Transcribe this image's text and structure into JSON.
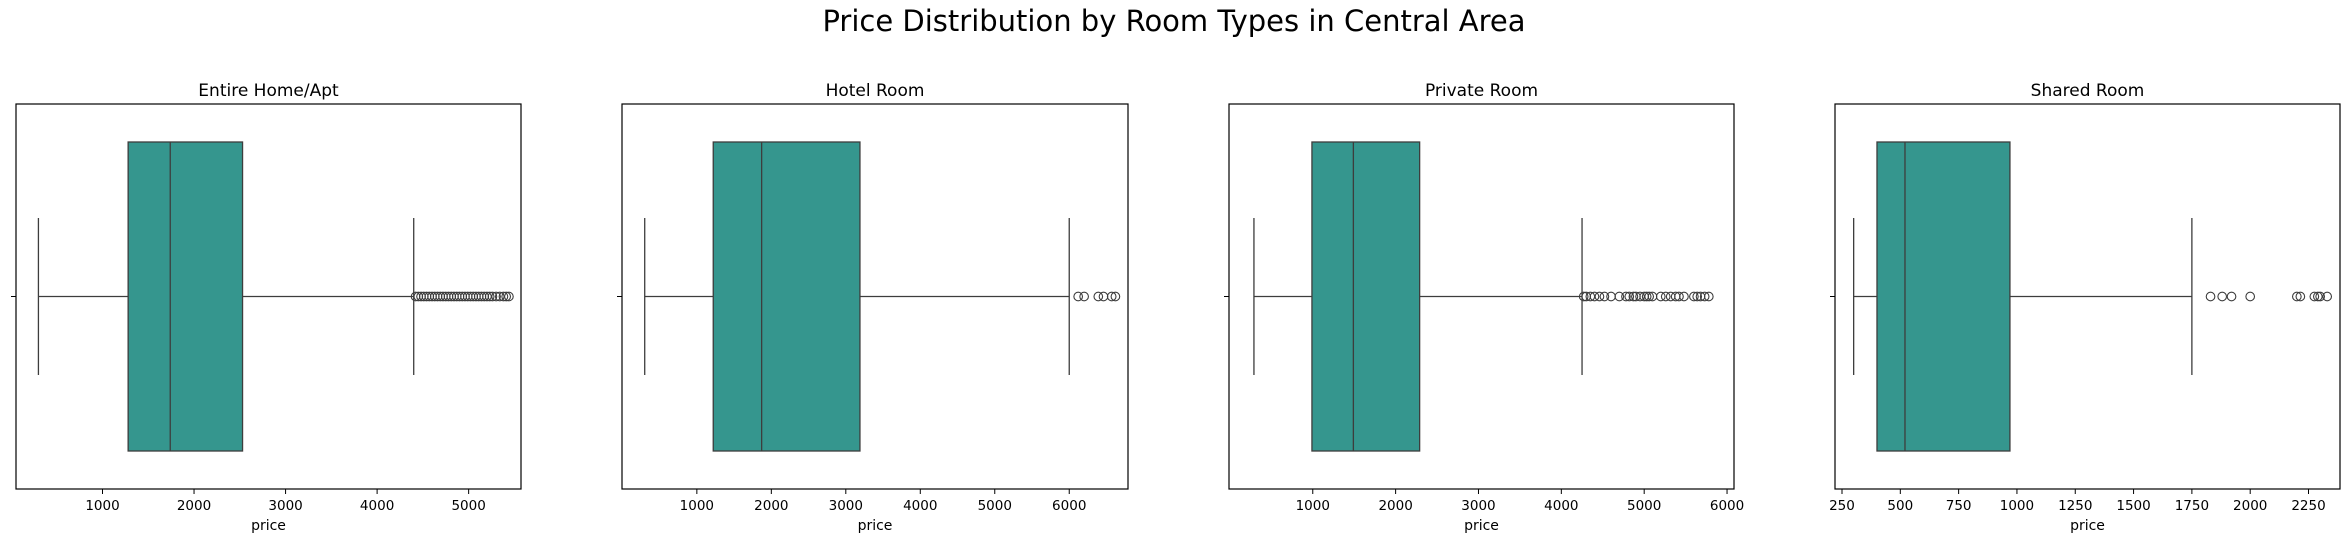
{
  "chart_data": {
    "type": "box",
    "title": "Price Distribution by Room Types in Central Area",
    "colors": {
      "box_fill": "#35968e",
      "line": "#3d3d3d",
      "frame": "#000000"
    },
    "panels": [
      {
        "title": "Entire Home/Apt",
        "xlabel": "price",
        "xlim": [
          55,
          5572
        ],
        "xticks": [
          1000,
          2000,
          3000,
          4000,
          5000
        ],
        "stats": {
          "whisker_low": 300,
          "q1": 1280,
          "median": 1740,
          "q3": 2530,
          "whisker_high": 4400
        },
        "outliers": [
          4420,
          4450,
          4480,
          4510,
          4540,
          4570,
          4600,
          4630,
          4660,
          4690,
          4720,
          4750,
          4780,
          4810,
          4840,
          4870,
          4900,
          4930,
          4960,
          4990,
          5020,
          5050,
          5080,
          5110,
          5140,
          5170,
          5200,
          5230,
          5260,
          5300,
          5340,
          5380,
          5410,
          5440
        ]
      },
      {
        "title": "Hotel Room",
        "xlabel": "price",
        "xlim": [
          -5,
          6789
        ],
        "xticks": [
          1000,
          2000,
          3000,
          4000,
          5000,
          6000
        ],
        "stats": {
          "whisker_low": 300,
          "q1": 1220,
          "median": 1870,
          "q3": 3190,
          "whisker_high": 6000
        },
        "outliers": [
          6120,
          6200,
          6390,
          6460,
          6570,
          6620
        ]
      },
      {
        "title": "Private Room",
        "xlabel": "price",
        "xlim": [
          -11,
          6084
        ],
        "xticks": [
          1000,
          2000,
          3000,
          4000,
          5000,
          6000
        ],
        "stats": {
          "whisker_low": 290,
          "q1": 990,
          "median": 1490,
          "q3": 2290,
          "whisker_high": 4250
        },
        "outliers": [
          4270,
          4300,
          4350,
          4400,
          4460,
          4520,
          4600,
          4700,
          4780,
          4820,
          4870,
          4900,
          4950,
          5000,
          5030,
          5060,
          5100,
          5200,
          5260,
          5320,
          5380,
          5420,
          5480,
          5600,
          5640,
          5680,
          5730,
          5780
        ]
      },
      {
        "title": "Shared Room",
        "xlabel": "price",
        "xlim": [
          220,
          2385
        ],
        "xticks": [
          250,
          500,
          750,
          1000,
          1250,
          1500,
          1750,
          2000,
          2250
        ],
        "stats": {
          "whisker_low": 300,
          "q1": 400,
          "median": 520,
          "q3": 970,
          "whisker_high": 1750
        },
        "outliers": [
          1830,
          1880,
          1920,
          2000,
          2200,
          2215,
          2275,
          2290,
          2300,
          2330
        ]
      }
    ]
  }
}
